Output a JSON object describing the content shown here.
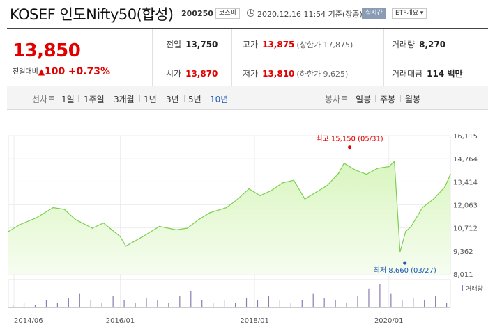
{
  "header": {
    "title": "KOSEF 인도Nifty50(합성)",
    "code": "200250",
    "market_badge": "코스피",
    "datetime": "2020.12.16 11:54 기준(장중)",
    "live_badge": "실시간",
    "etf_badge": "ETF개요 ▾"
  },
  "quote": {
    "price": "13,850",
    "change_label": "전일대비",
    "change_value": "100",
    "change_pct": "+0.73%",
    "prev_close": {
      "label": "전일",
      "value": "13,750"
    },
    "open": {
      "label": "시가",
      "value": "13,870"
    },
    "high": {
      "label": "고가",
      "value": "13,875",
      "limit": "(상한가 17,875)"
    },
    "low": {
      "label": "저가",
      "value": "13,810",
      "limit": "(하한가 9,625)"
    },
    "volume": {
      "label": "거래량",
      "value": "8,270"
    },
    "amount": {
      "label": "거래대금",
      "value": "114 백만"
    }
  },
  "toolbar": {
    "line_label": "선차트",
    "periods": [
      "1일",
      "1주일",
      "3개월",
      "1년",
      "3년",
      "5년",
      "10년"
    ],
    "active_period": "10년",
    "candle_label": "봉차트",
    "candles": [
      "일봉",
      "주봉",
      "월봉"
    ]
  },
  "colors": {
    "up": "#e10000",
    "accent": "#1e58b4",
    "line": "#7ccf4f",
    "area_top": "#d9f5bf",
    "area_bottom": "#f6fdf0"
  },
  "chart_data": {
    "type": "area",
    "yticks": [
      8011,
      9362,
      10712,
      12063,
      13414,
      14764,
      16115
    ],
    "ytick_labels": [
      "8,011",
      "9,362",
      "10,712",
      "12,063",
      "13,414",
      "14,764",
      "16,115"
    ],
    "ylim": [
      8011,
      16115
    ],
    "x_tick_labels": [
      "2014/06",
      "2016/01",
      "2018/01",
      "2020/01"
    ],
    "x_tick_dates": [
      "2014-06",
      "2016-01",
      "2018-01",
      "2020-01"
    ],
    "date_range": [
      "2014-05",
      "2020-12"
    ],
    "max_label": "최고 15,150 (05/31)",
    "max_point": {
      "date": "2019-05-31",
      "value": 15150
    },
    "min_label": "최저 8,660 (03/27)",
    "min_point": {
      "date": "2020-03-27",
      "value": 8660
    },
    "volume_legend": "거래량",
    "series": [
      {
        "dates": [
          "2014-05",
          "2014-07",
          "2014-10",
          "2015-01",
          "2015-03",
          "2015-05",
          "2015-08",
          "2015-10",
          "2016-01",
          "2016-02",
          "2016-05",
          "2016-08",
          "2016-11",
          "2017-01",
          "2017-03",
          "2017-05",
          "2017-08",
          "2017-10",
          "2017-12",
          "2018-02",
          "2018-04",
          "2018-06",
          "2018-08",
          "2018-10",
          "2018-12",
          "2019-02",
          "2019-04",
          "2019-05",
          "2019-07",
          "2019-09",
          "2019-11",
          "2020-01",
          "2020-02",
          "2020-03",
          "2020-04",
          "2020-05",
          "2020-07",
          "2020-09",
          "2020-11",
          "2020-12"
        ],
        "values": [
          10500,
          10900,
          11300,
          11900,
          11800,
          11200,
          10700,
          11000,
          10200,
          9650,
          10200,
          10800,
          10600,
          10700,
          11200,
          11600,
          11900,
          12400,
          13000,
          12600,
          12900,
          13350,
          13500,
          12400,
          12800,
          13200,
          13900,
          14500,
          14100,
          13850,
          14200,
          14300,
          14600,
          9300,
          10500,
          10800,
          11900,
          12400,
          13100,
          13850
        ]
      }
    ],
    "volume_series": [
      1,
      2,
      1,
      3,
      2,
      4,
      6,
      3,
      2,
      5,
      3,
      2,
      4,
      3,
      2,
      5,
      7,
      3,
      2,
      3,
      2,
      4,
      3,
      5,
      3,
      2,
      3,
      6,
      4,
      3,
      2,
      5,
      8,
      10,
      6,
      3,
      4,
      3,
      5,
      2
    ]
  }
}
